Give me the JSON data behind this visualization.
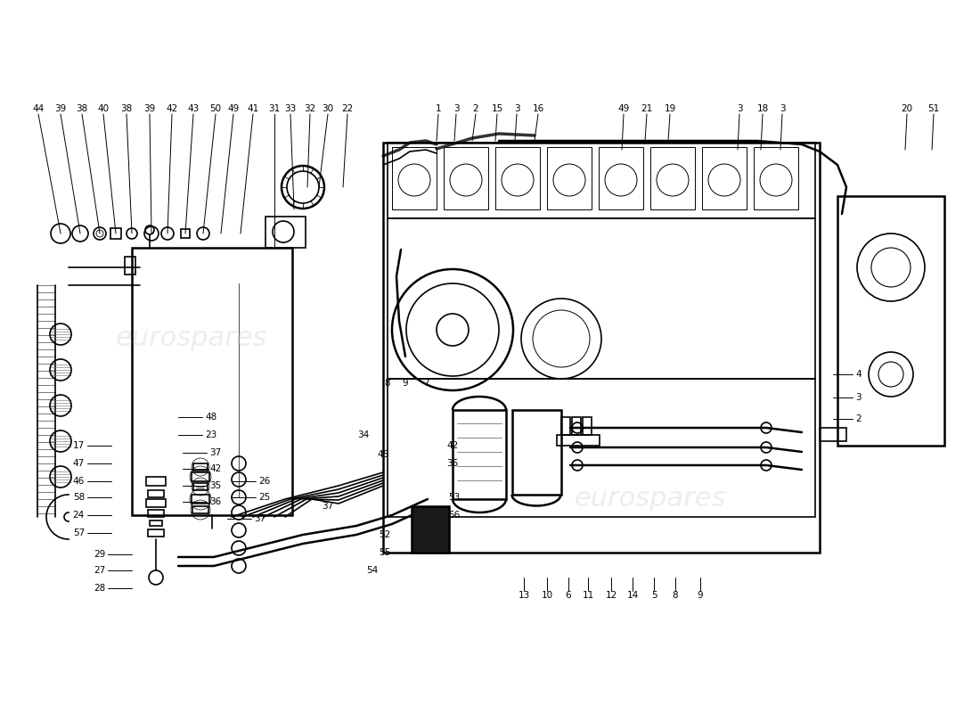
{
  "background_color": "#ffffff",
  "line_color": "#000000",
  "figsize": [
    11.0,
    8.0
  ],
  "dpi": 100,
  "watermark_text": "eurospares",
  "watermark_color": "#cccccc",
  "top_labels_left": [
    [
      "44",
      43,
      122
    ],
    [
      "39",
      68,
      122
    ],
    [
      "38",
      92,
      122
    ],
    [
      "40",
      116,
      122
    ],
    [
      "38",
      142,
      122
    ],
    [
      "39",
      168,
      122
    ],
    [
      "42",
      193,
      122
    ],
    [
      "43",
      217,
      122
    ],
    [
      "50",
      242,
      122
    ],
    [
      "49",
      262,
      122
    ],
    [
      "41",
      284,
      122
    ],
    [
      "31",
      308,
      122
    ],
    [
      "33",
      326,
      122
    ],
    [
      "32",
      348,
      122
    ],
    [
      "30",
      368,
      122
    ],
    [
      "22",
      390,
      122
    ]
  ],
  "top_labels_mid": [
    [
      "1",
      492,
      122
    ],
    [
      "3",
      512,
      122
    ],
    [
      "2",
      534,
      122
    ],
    [
      "15",
      558,
      122
    ],
    [
      "3",
      580,
      122
    ],
    [
      "16",
      604,
      122
    ]
  ],
  "top_labels_right": [
    [
      "49",
      700,
      122
    ],
    [
      "21",
      726,
      122
    ],
    [
      "19",
      752,
      122
    ],
    [
      "3",
      830,
      122
    ],
    [
      "18",
      856,
      122
    ],
    [
      "3",
      878,
      122
    ],
    [
      "20",
      1018,
      122
    ],
    [
      "51",
      1048,
      122
    ]
  ],
  "left_labels": [
    [
      "17",
      95,
      500
    ],
    [
      "47",
      95,
      520
    ],
    [
      "46",
      95,
      540
    ],
    [
      "58",
      95,
      558
    ],
    [
      "24",
      95,
      578
    ],
    [
      "57",
      95,
      598
    ],
    [
      "29",
      118,
      622
    ],
    [
      "27",
      118,
      640
    ],
    [
      "28",
      118,
      660
    ]
  ],
  "left_labels2": [
    [
      "48",
      230,
      468
    ],
    [
      "23",
      230,
      488
    ],
    [
      "37",
      235,
      508
    ],
    [
      "42",
      235,
      526
    ],
    [
      "35",
      235,
      545
    ],
    [
      "36",
      235,
      563
    ],
    [
      "37",
      285,
      582
    ],
    [
      "26",
      290,
      540
    ],
    [
      "25",
      290,
      558
    ]
  ],
  "mid_labels": [
    [
      "8",
      435,
      430
    ],
    [
      "9",
      455,
      430
    ],
    [
      "7",
      478,
      430
    ],
    [
      "34",
      408,
      488
    ],
    [
      "45",
      430,
      510
    ],
    [
      "42",
      508,
      500
    ],
    [
      "36",
      508,
      520
    ],
    [
      "37",
      368,
      568
    ],
    [
      "53",
      510,
      558
    ],
    [
      "56",
      510,
      578
    ],
    [
      "52",
      432,
      600
    ],
    [
      "55",
      432,
      620
    ],
    [
      "54",
      418,
      640
    ]
  ],
  "bottom_labels": [
    [
      "13",
      588,
      668
    ],
    [
      "10",
      614,
      668
    ],
    [
      "6",
      638,
      668
    ],
    [
      "11",
      660,
      668
    ],
    [
      "12",
      686,
      668
    ],
    [
      "14",
      710,
      668
    ],
    [
      "5",
      734,
      668
    ],
    [
      "8",
      758,
      668
    ],
    [
      "9",
      786,
      668
    ]
  ],
  "right_labels": [
    [
      "4",
      960,
      420
    ],
    [
      "3",
      960,
      446
    ],
    [
      "2",
      960,
      470
    ]
  ]
}
